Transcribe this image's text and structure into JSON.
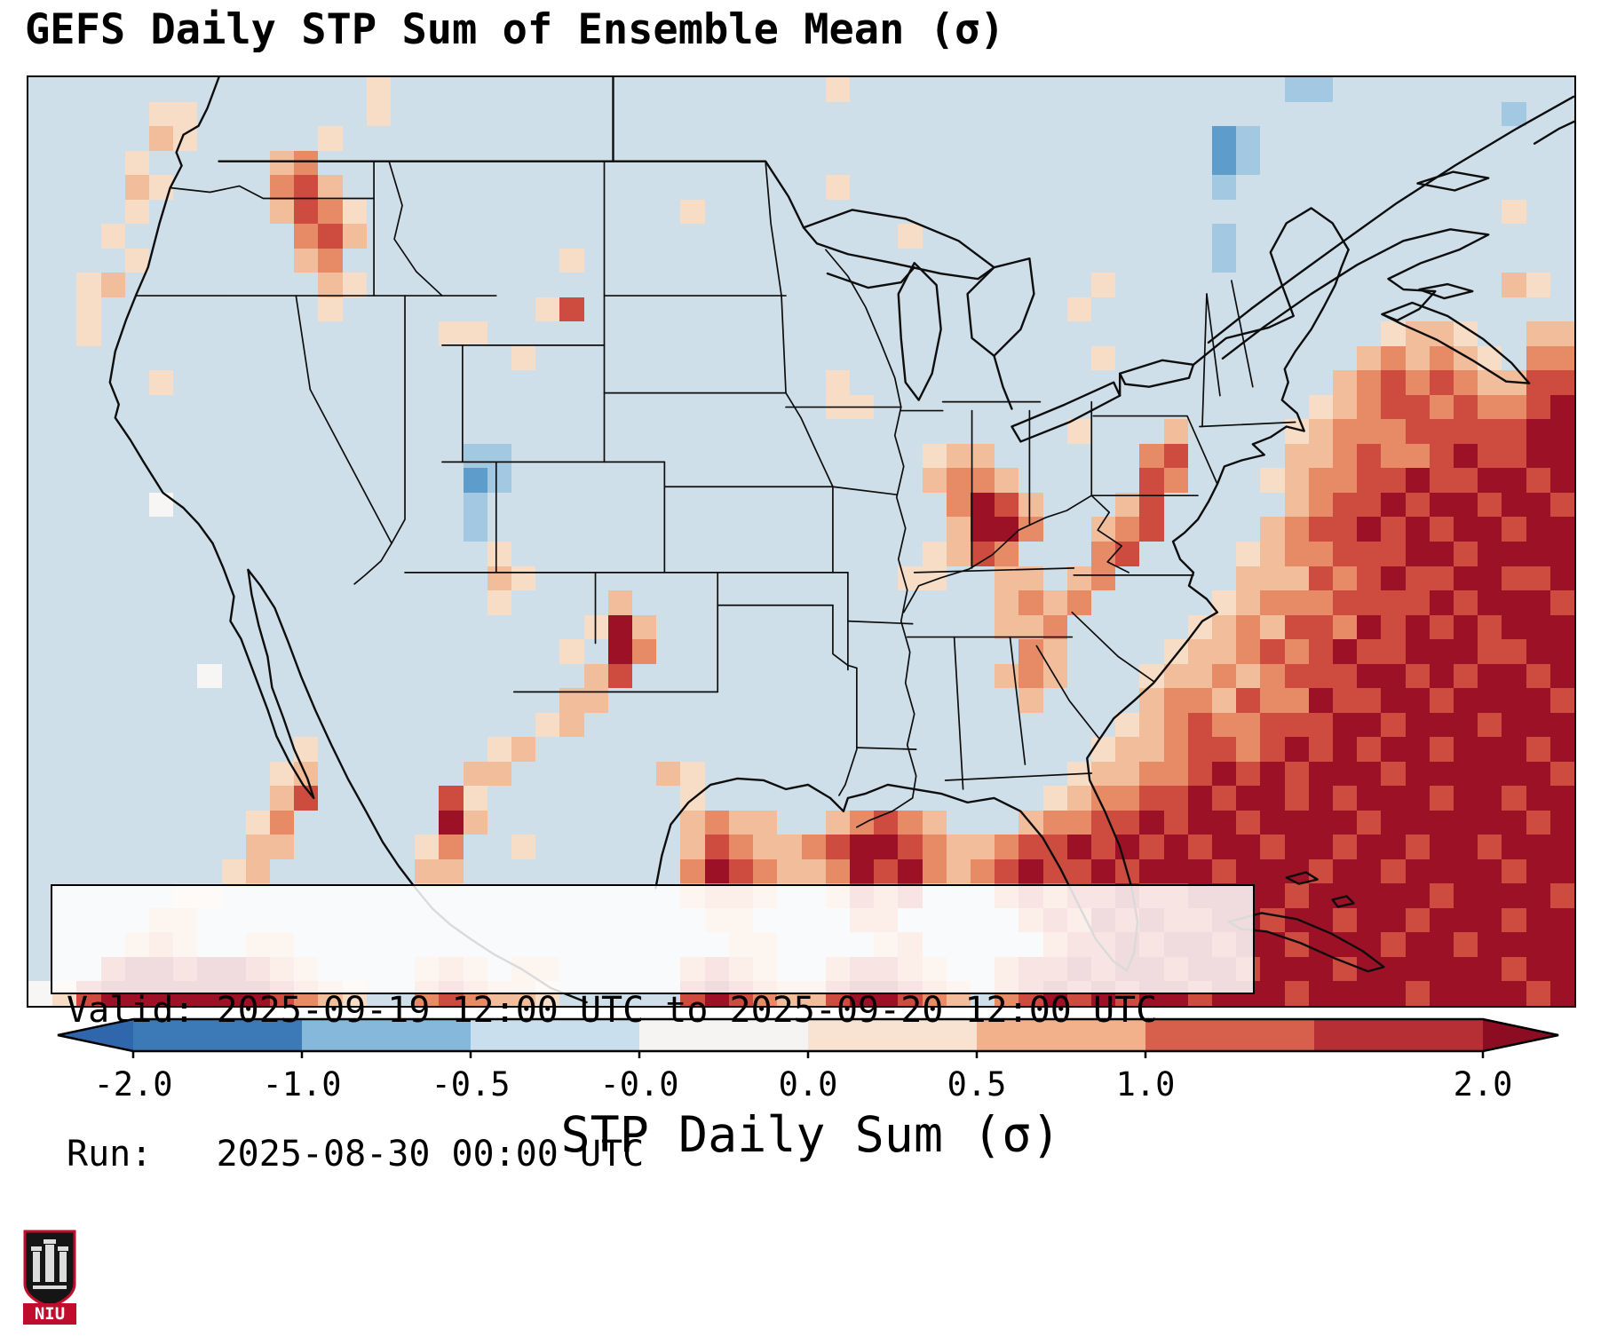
{
  "title": "GEFS Daily STP Sum of Ensemble Mean (σ)",
  "annotation": {
    "valid_line": "Valid: 2025-09-19 12:00 UTC to 2025-09-20 12:00 UTC",
    "run_line": "Run:   2025-08-30 00:00 UTC"
  },
  "colorbar": {
    "label": "STP Daily Sum (σ)",
    "tick_labels": [
      "-2.0",
      "-1.0",
      "-0.5",
      "-0.0",
      "0.0",
      "0.5",
      "1.0",
      "2.0"
    ],
    "tick_positions": [
      0,
      1,
      2,
      3,
      4,
      5,
      6,
      8
    ],
    "segment_colors": [
      "#3c7ab7",
      "#85b8da",
      "#cadfed",
      "#f6f4f2",
      "#f8e3d3",
      "#f2b08b",
      "#d6604b",
      "#b52f35"
    ],
    "under_color": "#2f66ac",
    "over_color": "#8c0c22"
  },
  "logo": {
    "text": "NIU",
    "accent_color": "#c00d2d"
  },
  "map": {
    "background": "#cfdfea",
    "cols": 64,
    "rows": 38,
    "palette": {
      ".": "#cfdfea",
      "w": "#f8f6f4",
      "b": "#a3c9e2",
      "B": "#5e9dcb",
      "1": "#f7dcc6",
      "2": "#f2bd9a",
      "3": "#e78a66",
      "4": "#ce4b40",
      "5": "#9d1127"
    },
    "grid_rows": [
      [
        "........",
        "......1.",
        "........",
        "........",
        ".1......",
        "........",
        "....bb..",
        "........"
      ],
      [
        ".....11.",
        "......1.",
        "........",
        "........",
        "........",
        "........",
        "........",
        ".....b.."
      ],
      [
        ".....21.",
        "....1...",
        "........",
        "........",
        "........",
        "........",
        ".Bb.....",
        "........"
      ],
      [
        "....1...",
        "..23....",
        "........",
        "........",
        "........",
        "........",
        ".Bb.....",
        "........"
      ],
      [
        "....21..",
        "..342...",
        "........",
        "........",
        ".1......",
        "........",
        ".b......",
        "........"
      ],
      [
        "....1...",
        "..2431..",
        "........",
        "...1....",
        "........",
        "........",
        "........",
        ".....1.."
      ],
      [
        "...1....",
        "...342..",
        "........",
        "........",
        "....1...",
        "........",
        ".b......",
        "........"
      ],
      [
        "....1...",
        "...23...",
        "......1.",
        "........",
        "........",
        "........",
        ".b......",
        "........"
      ],
      [
        "..12....",
        "....21..",
        "........",
        "........",
        "........",
        "....1...",
        "........",
        ".....21."
      ],
      [
        "..1.....",
        "....1...",
        ".....14.",
        "........",
        "........",
        "...1....",
        "........",
        "........"
      ],
      [
        "..1.....",
        "........",
        ".11.....",
        "........",
        "........",
        "........",
        "........",
        "1221..22"
      ],
      [
        "........",
        "........",
        "....1...",
        "........",
        "........",
        "....1...",
        ".......2",
        "32321.33"
      ],
      [
        ".....1..",
        "........",
        "........",
        "........",
        ".1......",
        "........",
        "......23",
        "43432244"
      ],
      [
        "........",
        "........",
        "........",
        "........",
        ".11.....",
        "........",
        ".....123",
        "44343345"
      ],
      [
        "........",
        "........",
        "........",
        "........",
        "........",
        "...1...2",
        "....1233",
        "34444455"
      ],
      [
        "........",
        "........",
        "..bb....",
        "........",
        ".....122",
        "......34",
        "....2234",
        "33454455"
      ],
      [
        "........",
        "........",
        "..Bb....",
        "........",
        ".....233",
        "2.....43",
        "...12334",
        "45445545"
      ],
      [
        ".....w..",
        "........",
        "..b.....",
        "........",
        "......35",
        "42...24.",
        "....2344",
        "54554554"
      ],
      [
        "........",
        "........",
        "..b.....",
        "........",
        "......25",
        "53..234.",
        "...23445",
        "45455455"
      ],
      [
        "........",
        "........",
        "...1....",
        "........",
        ".....124",
        "3...34..",
        "..123344",
        "45545555"
      ],
      [
        "........",
        "........",
        "...21...",
        "........",
        "....11..",
        "22.23...",
        "..222434",
        "54455445"
      ],
      [
        "........",
        "........",
        "...1....",
        "2.......",
        "........",
        "2323....",
        ".1233344",
        "44545554"
      ],
      [
        "........",
        "........",
        ".......1",
        "52......",
        "........",
        "223.....",
        "12324435",
        "45454555"
      ],
      [
        "........",
        "........",
        "......1.",
        "53......",
        "........",
        ".32....1",
        "22343454",
        "45554455"
      ],
      [
        ".......w",
        "........",
        ".......2",
        "4.......",
        "........",
        "232...12",
        "23234445",
        "54545545"
      ],
      [
        "........",
        "........",
        "......22",
        "........",
        "........",
        ".2....23",
        "32433544",
        "55455554"
      ],
      [
        "........",
        "........",
        ".....12.",
        "........",
        "........",
        ".....123",
        "43344455",
        "45554555"
      ],
      [
        "........",
        "...1....",
        "...12...",
        "........",
        "........",
        "....1223",
        "44345454",
        "55455545"
      ],
      [
        "........",
        "..12....",
        "..22....",
        "..21....",
        "........",
        "...12233",
        "45454555",
        "45555554"
      ],
      [
        "........",
        "..24....",
        ".41.....",
        "...1....",
        "........",
        "..123344",
        "54554545",
        "55455455"
      ],
      [
        "........",
        ".13.....",
        ".52.....",
        "...2322.",
        ".23432..",
        ".2334454",
        "55455554",
        "55555545"
      ],
      [
        "........",
        ".22.....",
        "13..1...",
        "...24322",
        "34554322",
        "34454545",
        "45545545",
        "54554555"
      ],
      [
        "........",
        "12......",
        "22......",
        "...35432",
        "23545323",
        "45445455",
        "54555455",
        "45555455"
      ],
      [
        "......11",
        "........",
        "........",
        "...2332.",
        ".2434...",
        "34344544",
        "55554555",
        "55455554"
      ],
      [
        ".....22.",
        "........",
        "........",
        "....22..",
        "..33....",
        ".3435454",
        "45545545",
        "54555455"
      ],
      [
        "....232.",
        ".22.....",
        "........",
        ".....22.",
        "...23...",
        "..344545",
        "54554555",
        "45545555"
      ],
      [
        "...45545",
        "5432....",
        "232.22..",
        "...3432.",
        ".34432..",
        "34454554",
        "55455545",
        "55555455"
      ],
      [
        "w1455555",
        "554321..",
        "343221..",
        "...45432",
        "2455432.",
        "34545455",
        "45554555",
        "54555545"
      ]
    ]
  }
}
